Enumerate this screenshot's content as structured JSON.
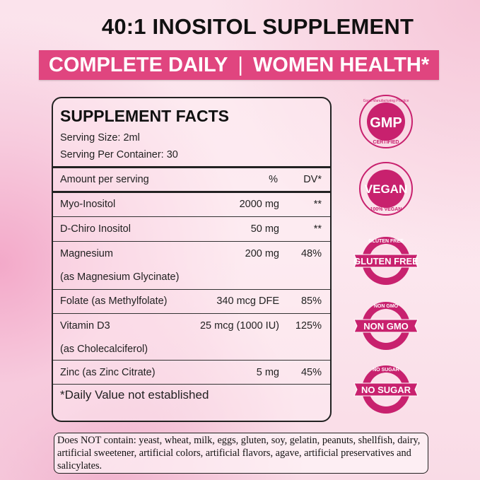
{
  "title": "40:1 INOSITOL SUPPLEMENT",
  "banner": {
    "left": "COMPLETE DAILY",
    "sep": "|",
    "right": "WOMEN HEALTH*"
  },
  "facts": {
    "heading": "SUPPLEMENT FACTS",
    "serving_size": "Serving Size: 2ml",
    "servings_per_container": "Serving Per Container: 30",
    "col_name": "Amount per serving",
    "col_pct": "%",
    "col_dv": "DV*",
    "rows": [
      {
        "name": "Myo-Inositol",
        "amount": "2000 mg",
        "dv": "**"
      },
      {
        "name": "D-Chiro Inositol",
        "amount": "50 mg",
        "dv": "**"
      },
      {
        "name": "Magnesium",
        "sub": "(as Magnesium Glycinate)",
        "amount": "200 mg",
        "dv": "48%"
      },
      {
        "name": "Folate (as Methylfolate)",
        "amount": "340 mcg DFE",
        "dv": "85%"
      },
      {
        "name": "Vitamin D3",
        "sub": "(as Cholecalciferol)",
        "amount": "25 mcg (1000 IU)",
        "dv": "125%"
      },
      {
        "name": "Zinc (as Zinc Citrate)",
        "amount": "5 mg",
        "dv": "45%"
      }
    ],
    "footnote": "*Daily Value not established"
  },
  "badges": [
    {
      "icon": "gmp-certified-badge",
      "top": "Good Manufacturing Practice",
      "main": "GMP",
      "bottom": "CERTIFIED"
    },
    {
      "icon": "vegan-badge",
      "main": "VEGAN",
      "bottom": "100% VEGAN"
    },
    {
      "icon": "gluten-free-badge",
      "main": "GLUTEN FREE",
      "ring": "GLUTEN FREE"
    },
    {
      "icon": "non-gmo-badge",
      "main": "NON GMO",
      "ring": "NON GMO"
    },
    {
      "icon": "no-sugar-badge",
      "main": "NO SUGAR",
      "ring": "NO SUGAR"
    }
  ],
  "note": "Does NOT contain: yeast, wheat, milk, eggs, gluten, soy, gelatin, peanuts, shellfish, dairy, artificial sweetener, artificial colors, artificial flavors, agave,  artificial preservatives and salicylates.",
  "colors": {
    "accent": "#e0457f",
    "badge": "#c8216e"
  }
}
